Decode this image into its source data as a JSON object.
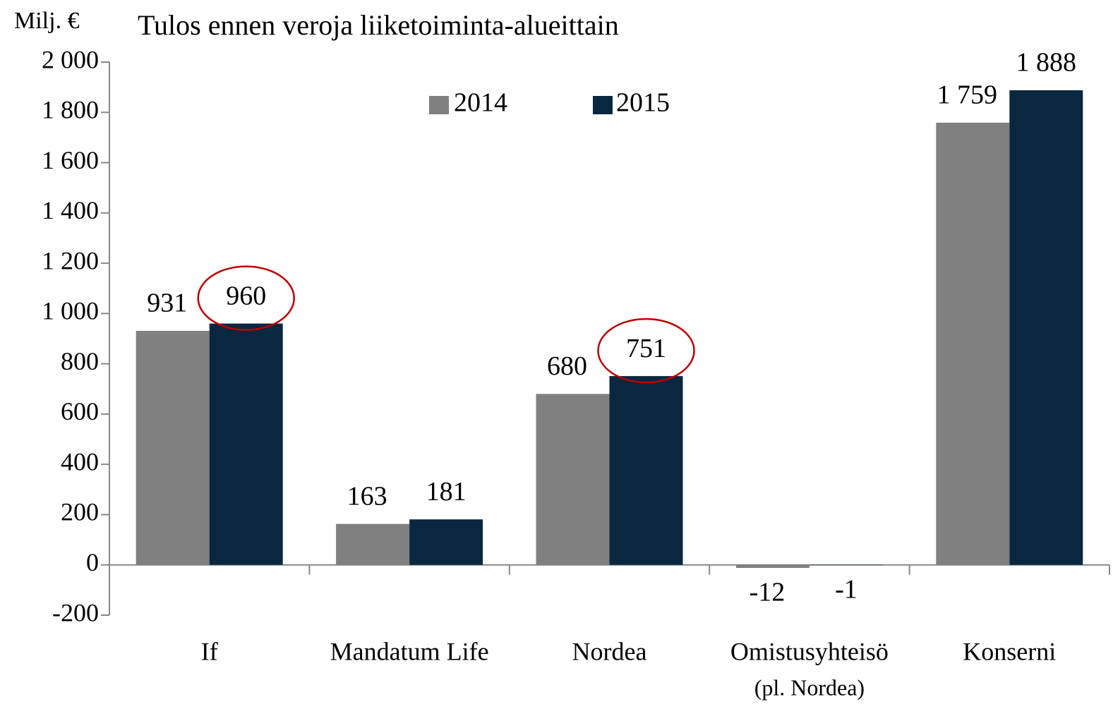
{
  "chart_data": {
    "type": "bar",
    "title": "Tulos ennen veroja liiketoiminta-alueittain",
    "y_label": "Milj. €",
    "categories": [
      "If",
      "Mandatum Life",
      "Nordea",
      "Omistusyhteisö",
      "Konserni"
    ],
    "annotations": [
      {
        "text": "(pl. Nordea)",
        "category": 3
      }
    ],
    "series": [
      {
        "name": "2014",
        "color": "#808080",
        "values": [
          931,
          163,
          680,
          -12,
          1759
        ],
        "value_labels": [
          "931",
          "163",
          "680",
          "-12",
          "1 759"
        ]
      },
      {
        "name": "2015",
        "color": "#0a2740",
        "values": [
          960,
          181,
          751,
          -1,
          1888
        ],
        "value_labels": [
          "960",
          "181",
          "751",
          "-1",
          "1 888"
        ]
      }
    ],
    "highlights": [
      {
        "series": 1,
        "index": 0,
        "color": "#c00000"
      },
      {
        "series": 1,
        "index": 2,
        "color": "#c00000"
      }
    ],
    "ylim": [
      -200,
      2000
    ],
    "yticks": [
      -200,
      0,
      200,
      400,
      600,
      800,
      {
        "value": 1000,
        "label": "1 000"
      },
      {
        "value": 1200,
        "label": "1 200"
      },
      {
        "value": 1400,
        "label": "1 400"
      },
      {
        "value": 1600,
        "label": "1 600"
      },
      {
        "value": 1800,
        "label": "1 800"
      },
      {
        "value": 2000,
        "label": "2 000"
      }
    ],
    "legend": "top",
    "grid": false
  }
}
